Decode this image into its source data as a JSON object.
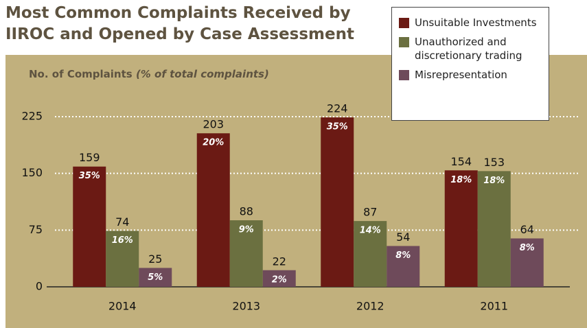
{
  "chart_data": {
    "type": "bar",
    "title": "Most Common Complaints Received by IIROC and Opened by Case Assessment",
    "y_label": "No. of Complaints",
    "y_label_note": "(% of total complaints)",
    "categories": [
      "2014",
      "2013",
      "2012",
      "2011"
    ],
    "series": [
      {
        "name": "Unsuitable Investments",
        "color": "#6b1a14",
        "values": [
          159,
          203,
          224,
          154
        ],
        "shares": [
          "35%",
          "20%",
          "35%",
          "18%"
        ]
      },
      {
        "name": "Unauthorized and discretionary trading",
        "color": "#6b7040",
        "values": [
          74,
          88,
          87,
          153
        ],
        "shares": [
          "16%",
          "9%",
          "14%",
          "18%"
        ]
      },
      {
        "name": "Misrepresentation",
        "color": "#6e4a5a",
        "values": [
          25,
          22,
          54,
          64
        ],
        "shares": [
          "5%",
          "2%",
          "8%",
          "8%"
        ]
      }
    ],
    "ylim": [
      0,
      225
    ],
    "yticks": [
      0,
      75,
      150,
      225
    ],
    "grid": true,
    "legend": "top-right"
  }
}
